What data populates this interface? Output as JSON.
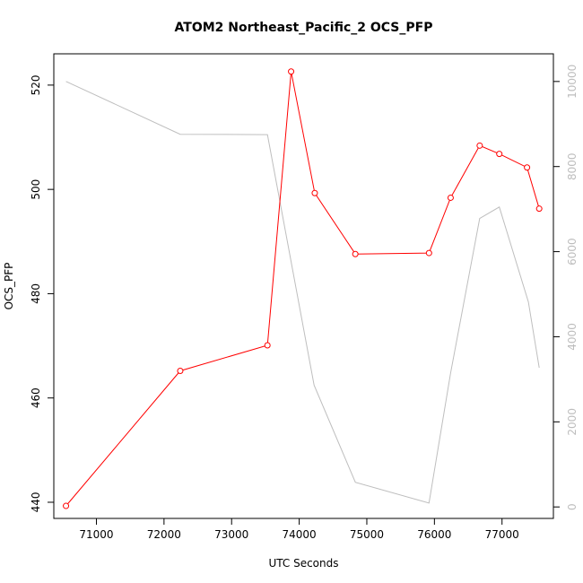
{
  "chart_data": {
    "type": "line",
    "title": "ATOM2 Northeast_Pacific_2 OCS_PFP",
    "xlabel": "UTC Seconds",
    "ylabel": "OCS_PFP",
    "xlim": [
      70370,
      77760
    ],
    "ylim": [
      436.9,
      526.0
    ],
    "y2lim": [
      -270,
      10650
    ],
    "x_ticks": [
      71000,
      72000,
      73000,
      74000,
      75000,
      76000,
      77000
    ],
    "y_ticks": [
      440,
      460,
      480,
      500,
      520
    ],
    "y2_ticks": [
      0,
      2000,
      4000,
      6000,
      8000,
      10000
    ],
    "grid": false,
    "series": [
      {
        "axis": "left",
        "color": "#ff0000",
        "markers": true,
        "x": [
          70550,
          72240,
          73530,
          73880,
          74230,
          74830,
          75920,
          76240,
          76670,
          76960,
          77370,
          77550
        ],
        "y": [
          439.3,
          465.2,
          470.1,
          522.6,
          499.3,
          487.6,
          487.8,
          498.4,
          508.4,
          506.8,
          504.2,
          496.3
        ]
      },
      {
        "axis": "right",
        "color": "#bebebe",
        "markers": false,
        "x": [
          70550,
          72240,
          73530,
          74220,
          74830,
          75920,
          76240,
          76670,
          76960,
          77390,
          77550
        ],
        "y": [
          10000,
          8760,
          8750,
          2860,
          580,
          90,
          3150,
          6780,
          7050,
          4820,
          3270
        ]
      }
    ]
  }
}
